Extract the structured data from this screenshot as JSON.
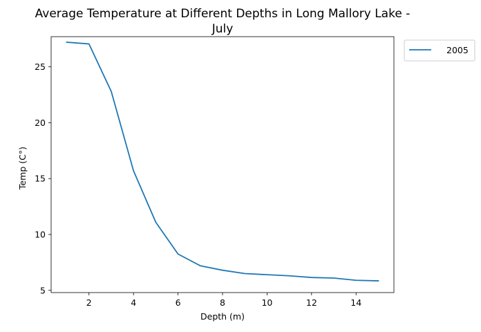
{
  "chart_data": {
    "type": "line",
    "title_line1": "Average Temperature at Different Depths in Long Mallory Lake -",
    "title_line2": "July",
    "xlabel": "Depth (m)",
    "ylabel": "Temp (C°)",
    "xlim": [
      0.3,
      15.7
    ],
    "ylim": [
      4.8,
      27.7
    ],
    "xticks": [
      2,
      4,
      6,
      8,
      10,
      12,
      14
    ],
    "yticks": [
      5,
      10,
      15,
      20,
      25
    ],
    "legend_position": "outside-top-right",
    "grid": false,
    "series": [
      {
        "name": "2005",
        "color": "#1f77b4",
        "x": [
          1,
          2,
          3,
          4,
          5,
          6,
          7,
          8,
          9,
          10,
          11,
          12,
          13,
          14,
          15
        ],
        "y": [
          27.2,
          27.05,
          22.8,
          15.7,
          11.1,
          8.25,
          7.2,
          6.8,
          6.5,
          6.4,
          6.3,
          6.15,
          6.1,
          5.9,
          5.85
        ]
      }
    ]
  }
}
